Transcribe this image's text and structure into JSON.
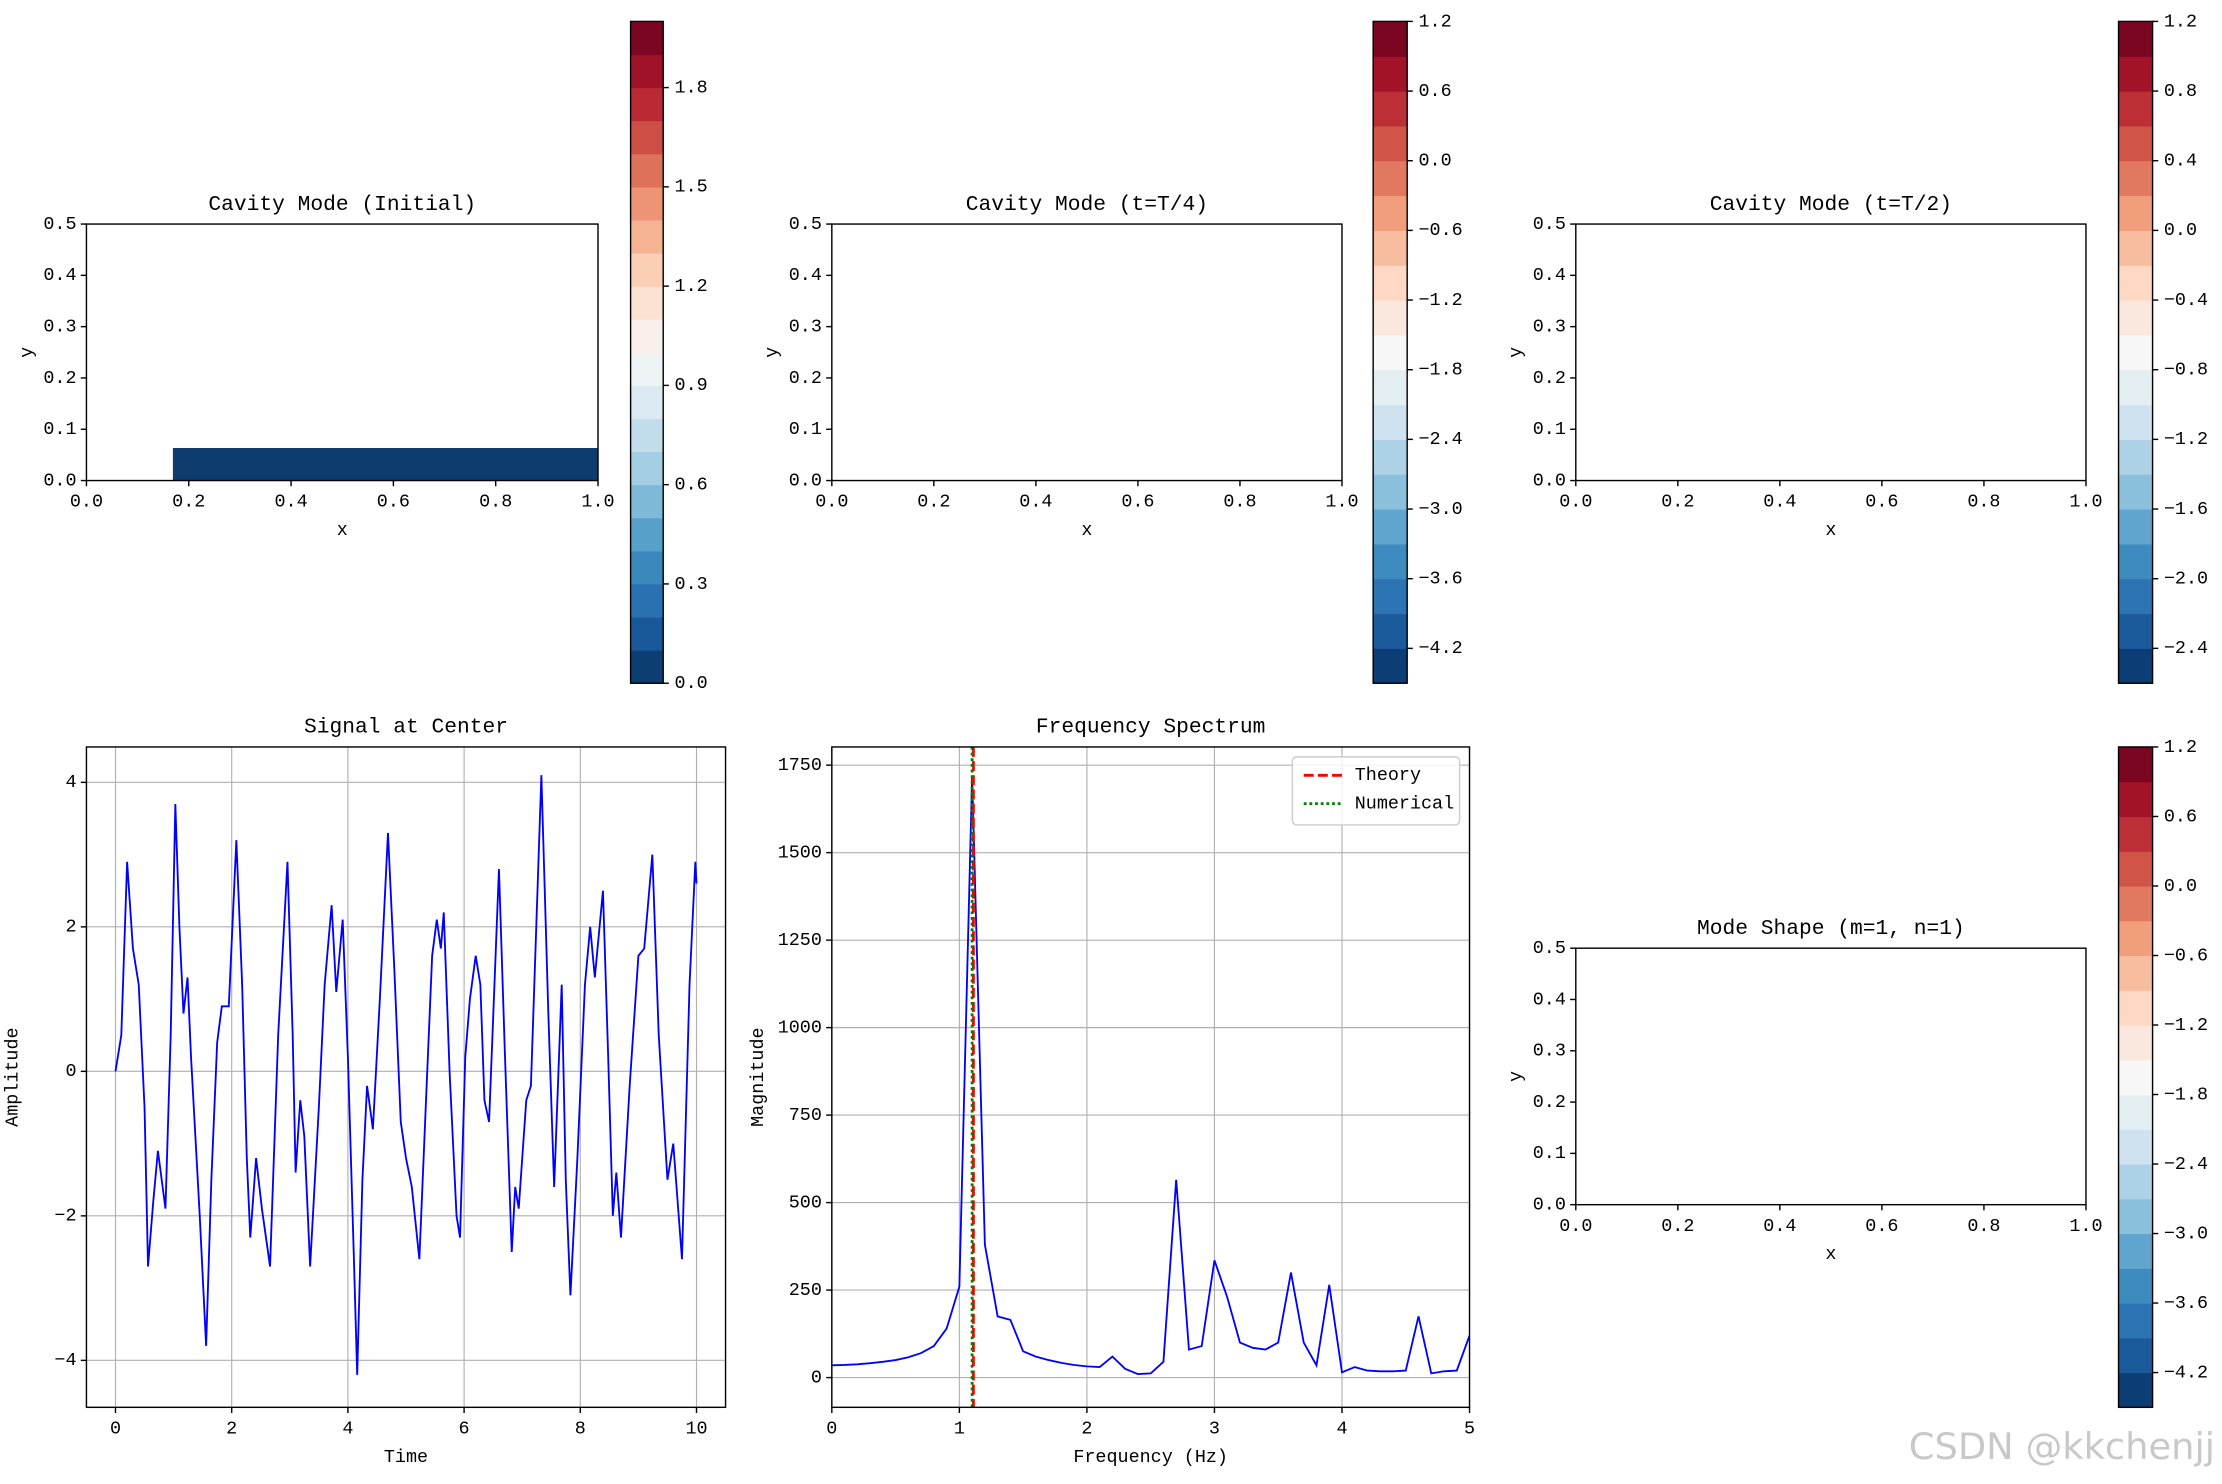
{
  "chart_data": [
    {
      "type": "contour",
      "title": "Cavity Mode (Initial)",
      "xlabel": "x",
      "ylabel": "y",
      "xlim": [
        0,
        1
      ],
      "ylim": [
        0,
        0.5
      ],
      "xticks": [
        {
          "value": 0,
          "label": "0.0"
        },
        0.2,
        0.4,
        0.6,
        0.8,
        {
          "value": 1,
          "label": "1.0"
        }
      ],
      "yticks": [
        {
          "value": 0,
          "label": "0.0"
        },
        0.1,
        0.2,
        0.3,
        0.4,
        0.5
      ],
      "colormap": "RdBu_r",
      "colorbar": {
        "lim": [
          0,
          2.0
        ],
        "levels": 20,
        "ticks": [
          {
            "value": 0,
            "label": "0.0"
          },
          0.3,
          0.6,
          0.9,
          1.2,
          1.5,
          1.8
        ]
      }
    },
    {
      "type": "contour",
      "title": "Cavity Mode (t=T/4)",
      "xlabel": "x",
      "ylabel": "y",
      "xlim": [
        0,
        1
      ],
      "ylim": [
        0,
        0.5
      ],
      "xticks": [
        {
          "value": 0,
          "label": "0.0"
        },
        0.2,
        0.4,
        0.6,
        0.8,
        {
          "value": 1,
          "label": "1.0"
        }
      ],
      "yticks": [
        {
          "value": 0,
          "label": "0.0"
        },
        0.1,
        0.2,
        0.3,
        0.4,
        0.5
      ],
      "colormap": "RdBu_r",
      "colorbar": {
        "lim": [
          -4.5,
          1.2
        ],
        "levels": 19,
        "ticks": [
          1.2,
          0.6,
          {
            "value": 0,
            "label": "0.0"
          },
          {
            "value": -0.6,
            "label": "−0.6"
          },
          {
            "value": -1.2,
            "label": "−1.2"
          },
          {
            "value": -1.8,
            "label": "−1.8"
          },
          {
            "value": -2.4,
            "label": "−2.4"
          },
          {
            "value": -3.0,
            "label": "−3.0"
          },
          {
            "value": -3.6,
            "label": "−3.6"
          },
          {
            "value": -4.2,
            "label": "−4.2"
          }
        ]
      }
    },
    {
      "type": "contour",
      "title": "Cavity Mode (t=T/2)",
      "xlabel": "x",
      "ylabel": "y",
      "xlim": [
        0,
        1
      ],
      "ylim": [
        0,
        0.5
      ],
      "xticks": [
        {
          "value": 0,
          "label": "0.0"
        },
        0.2,
        0.4,
        0.6,
        0.8,
        {
          "value": 1,
          "label": "1.0"
        }
      ],
      "yticks": [
        {
          "value": 0,
          "label": "0.0"
        },
        0.1,
        0.2,
        0.3,
        0.4,
        0.5
      ],
      "colormap": "RdBu_r",
      "colorbar": {
        "lim": [
          -2.6,
          1.2
        ],
        "levels": 19,
        "ticks": [
          1.2,
          0.8,
          0.4,
          {
            "value": 0,
            "label": "0.0"
          },
          {
            "value": -0.4,
            "label": "−0.4"
          },
          {
            "value": -0.8,
            "label": "−0.8"
          },
          {
            "value": -1.2,
            "label": "−1.2"
          },
          {
            "value": -1.6,
            "label": "−1.6"
          },
          {
            "value": -2.0,
            "label": "−2.0"
          },
          {
            "value": -2.4,
            "label": "−2.4"
          }
        ]
      }
    },
    {
      "type": "line",
      "title": "Signal at Center",
      "xlabel": "Time",
      "ylabel": "Amplitude",
      "xlim": [
        -0.5,
        10.5
      ],
      "ylim": [
        -4.65,
        4.49
      ],
      "xticks": [
        0,
        2,
        4,
        6,
        8,
        10
      ],
      "yticks": [
        {
          "value": -4,
          "label": "−4"
        },
        {
          "value": -2,
          "label": "−2"
        },
        0,
        2,
        4
      ],
      "grid": true,
      "x": [
        0,
        0.1,
        0.2,
        0.3,
        0.4,
        0.5,
        0.56,
        0.65,
        0.73,
        0.86,
        0.95,
        1.03,
        1.1,
        1.17,
        1.24,
        1.3,
        1.45,
        1.56,
        1.65,
        1.75,
        1.83,
        1.95,
        2.08,
        2.18,
        2.26,
        2.32,
        2.42,
        2.52,
        2.66,
        2.8,
        2.96,
        3.05,
        3.1,
        3.18,
        3.25,
        3.35,
        3.5,
        3.6,
        3.72,
        3.8,
        3.91,
        4.0,
        4.1,
        4.16,
        4.25,
        4.33,
        4.43,
        4.55,
        4.69,
        4.8,
        4.91,
        5.0,
        5.1,
        5.23,
        5.35,
        5.45,
        5.53,
        5.6,
        5.65,
        5.75,
        5.87,
        5.93,
        6.02,
        6.1,
        6.2,
        6.28,
        6.35,
        6.43,
        6.6,
        6.7,
        6.82,
        6.88,
        6.94,
        7.07,
        7.15,
        7.33,
        7.45,
        7.55,
        7.68,
        7.75,
        7.83,
        7.95,
        8.08,
        8.17,
        8.25,
        8.39,
        8.48,
        8.56,
        8.62,
        8.7,
        8.85,
        9.0,
        9.1,
        9.24,
        9.35,
        9.5,
        9.6,
        9.75,
        9.88,
        9.98,
        10.0
      ],
      "series": [
        {
          "color": "#0000ff",
          "values": [
            0,
            0.5,
            2.9,
            1.7,
            1.2,
            -0.5,
            -2.7,
            -1.8,
            -1.1,
            -1.9,
            0.5,
            3.7,
            2.0,
            0.8,
            1.3,
            0.2,
            -2.0,
            -3.8,
            -1.5,
            0.4,
            0.9,
            0.9,
            3.2,
            1.2,
            -1.2,
            -2.3,
            -1.2,
            -1.9,
            -2.7,
            0.5,
            2.9,
            0.5,
            -1.4,
            -0.4,
            -0.9,
            -2.7,
            -0.5,
            1.2,
            2.3,
            1.1,
            2.1,
            0.2,
            -2.5,
            -4.2,
            -1.5,
            -0.2,
            -0.8,
            1.0,
            3.3,
            1.4,
            -0.7,
            -1.2,
            -1.6,
            -2.6,
            -0.3,
            1.6,
            2.1,
            1.7,
            2.2,
            0.0,
            -2.0,
            -2.3,
            0.2,
            1.0,
            1.6,
            1.2,
            -0.4,
            -0.7,
            2.8,
            0.3,
            -2.5,
            -1.6,
            -1.9,
            -0.4,
            -0.2,
            4.1,
            0.8,
            -1.6,
            1.2,
            -1.5,
            -3.1,
            -1.2,
            1.2,
            2.0,
            1.3,
            2.5,
            0.2,
            -2.0,
            -1.4,
            -2.3,
            -0.2,
            1.6,
            1.7,
            3.0,
            0.5,
            -1.5,
            -1.0,
            -2.6,
            1.2,
            2.9,
            2.6
          ]
        }
      ]
    },
    {
      "type": "line",
      "title": "Frequency Spectrum",
      "xlabel": "Frequency (Hz)",
      "ylabel": "Magnitude",
      "xlim": [
        0,
        5
      ],
      "ylim": [
        -85,
        1802
      ],
      "xticks": [
        0,
        1,
        2,
        3,
        4,
        5
      ],
      "yticks": [
        0,
        250,
        500,
        750,
        1000,
        1250,
        1500,
        1750
      ],
      "grid": true,
      "legend": "upper right",
      "x": [
        0,
        0.1,
        0.2,
        0.3,
        0.4,
        0.5,
        0.6,
        0.7,
        0.8,
        0.9,
        1.0,
        1.1,
        1.2,
        1.3,
        1.4,
        1.5,
        1.6,
        1.7,
        1.8,
        1.9,
        2.0,
        2.1,
        2.2,
        2.3,
        2.4,
        2.5,
        2.6,
        2.7,
        2.8,
        2.9,
        3.0,
        3.1,
        3.2,
        3.3,
        3.4,
        3.5,
        3.6,
        3.7,
        3.8,
        3.9,
        4.0,
        4.1,
        4.2,
        4.3,
        4.4,
        4.5,
        4.6,
        4.7,
        4.8,
        4.9,
        5.0
      ],
      "series": [
        {
          "color": "#0000ff",
          "values": [
            35,
            36,
            38,
            41,
            45,
            50,
            58,
            70,
            90,
            140,
            260,
            1720,
            380,
            175,
            165,
            75,
            60,
            50,
            42,
            36,
            32,
            30,
            60,
            25,
            10,
            12,
            45,
            565,
            80,
            90,
            335,
            230,
            100,
            85,
            80,
            100,
            300,
            100,
            35,
            265,
            15,
            30,
            20,
            18,
            18,
            20,
            175,
            12,
            18,
            20,
            120
          ]
        }
      ],
      "vlines": [
        {
          "name": "Theory",
          "value": 1.11,
          "color": "#ff0000",
          "style": "dashed"
        },
        {
          "name": "Numerical",
          "value": 1.1,
          "color": "#008000",
          "style": "dotted"
        }
      ]
    },
    {
      "type": "contour",
      "title": "Mode Shape (m=1, n=1)",
      "xlabel": "x",
      "ylabel": "y",
      "xlim": [
        0,
        1
      ],
      "ylim": [
        0,
        0.5
      ],
      "xticks": [
        {
          "value": 0,
          "label": "0.0"
        },
        0.2,
        0.4,
        0.6,
        0.8,
        {
          "value": 1,
          "label": "1.0"
        }
      ],
      "yticks": [
        {
          "value": 0,
          "label": "0.0"
        },
        0.1,
        0.2,
        0.3,
        0.4,
        0.5
      ],
      "colormap": "RdBu_r",
      "colorbar": {
        "lim": [
          -4.5,
          1.2
        ],
        "levels": 19,
        "ticks": [
          1.2,
          0.6,
          {
            "value": 0,
            "label": "0.0"
          },
          {
            "value": -0.6,
            "label": "−0.6"
          },
          {
            "value": -1.2,
            "label": "−1.2"
          },
          {
            "value": -1.8,
            "label": "−1.8"
          },
          {
            "value": -2.4,
            "label": "−2.4"
          },
          {
            "value": -3.0,
            "label": "−3.0"
          },
          {
            "value": -3.6,
            "label": "−3.6"
          },
          {
            "value": -4.2,
            "label": "−4.2"
          }
        ]
      }
    }
  ],
  "watermark": "CSDN @kkchenjj"
}
